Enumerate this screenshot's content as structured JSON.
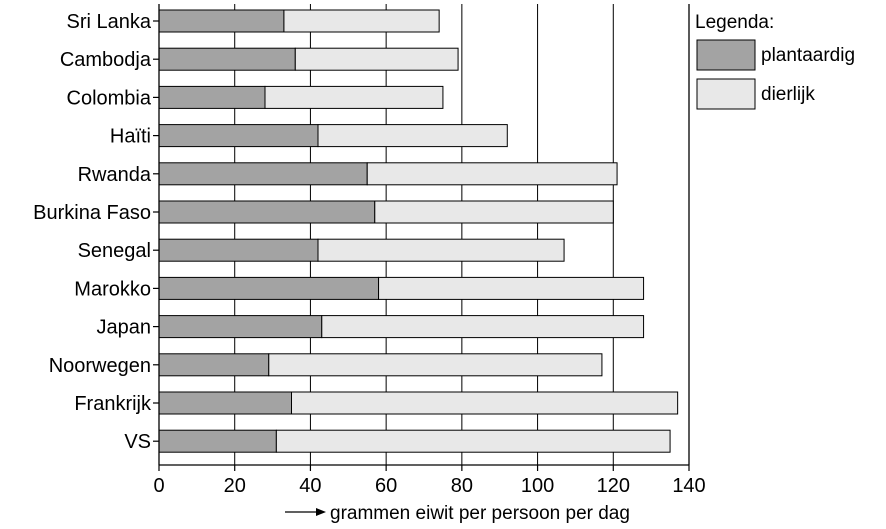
{
  "chart_data": {
    "type": "bar",
    "orientation": "horizontal",
    "stacked": true,
    "categories": [
      "Sri Lanka",
      "Cambodja",
      "Colombia",
      "Haïti",
      "Rwanda",
      "Burkina Faso",
      "Senegal",
      "Marokko",
      "Japan",
      "Noorwegen",
      "Frankrijk",
      "VS"
    ],
    "series": [
      {
        "name": "plantaardig",
        "color": "#a3a3a3",
        "values": [
          33,
          36,
          28,
          42,
          55,
          57,
          42,
          58,
          43,
          29,
          35,
          31
        ]
      },
      {
        "name": "dierlijk",
        "color": "#e8e8e8",
        "values": [
          41,
          43,
          47,
          50,
          66,
          63,
          65,
          70,
          85,
          88,
          102,
          104
        ]
      }
    ],
    "xlim": [
      0,
      140
    ],
    "xticks": [
      "0",
      "20",
      "40",
      "60",
      "80",
      "100",
      "120",
      "140"
    ],
    "xlabel": "grammen eiwit per persoon per dag",
    "legend_title": "Legenda:",
    "grid": "vertical",
    "legend_position": "right"
  }
}
